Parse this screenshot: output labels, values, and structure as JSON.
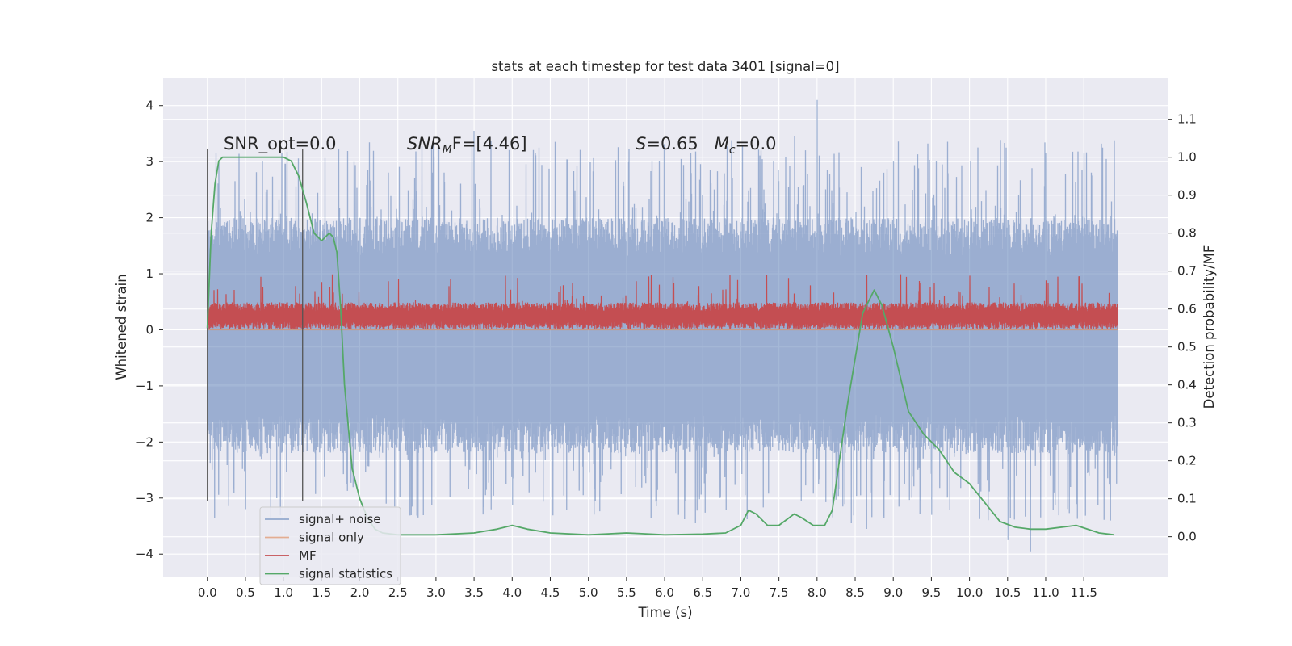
{
  "chart_data": {
    "type": "line",
    "title": "stats at each timestep for test data 3401 [signal=0]",
    "xlabel": "Time (s)",
    "ylabel": "Whitened strain",
    "y2label": "Detection probability/MF",
    "xlim": [
      -0.58,
      12.6
    ],
    "ylim": [
      -4.4,
      4.5
    ],
    "y2lim": [
      -0.105,
      1.21
    ],
    "x_ticks": [
      "0.0",
      "0.5",
      "1.0",
      "1.5",
      "2.0",
      "2.5",
      "3.0",
      "3.5",
      "4.0",
      "4.5",
      "5.0",
      "5.5",
      "6.0",
      "6.5",
      "7.0",
      "7.5",
      "8.0",
      "8.5",
      "9.0",
      "9.5",
      "10.0",
      "10.5",
      "11.0",
      "11.5"
    ],
    "y_ticks": [
      "4",
      "3",
      "2",
      "1",
      "0",
      "−1",
      "−2",
      "−3",
      "−4"
    ],
    "y2_ticks": [
      "1.1",
      "1.0",
      "0.9",
      "0.8",
      "0.7",
      "0.6",
      "0.5",
      "0.4",
      "0.3",
      "0.2",
      "0.1",
      "0.0"
    ],
    "grid": true,
    "legend_position": "lower-left",
    "annotations": {
      "snr_opt": "SNR_opt=0.0",
      "snr_mf_main": "SNR",
      "snr_mf_sub": "M",
      "snr_mf_tail": "F=[4.46]",
      "s_var": "S",
      "s_value": "=0.65",
      "mc_var": "M",
      "mc_sub": "c",
      "mc_value": "=0.0"
    },
    "vertical_markers": [
      0.0,
      1.25
    ],
    "colors": {
      "background": "#eaeaf2",
      "grid": "#ffffff",
      "noise": "#4c72b0",
      "signal_only": "#dd8452",
      "mf": "#c44e52",
      "statistics": "#55a868",
      "marker": "#555555"
    },
    "series": [
      {
        "name": "signal+ noise",
        "axis": "left",
        "envelope": {
          "x_range": [
            0.0,
            11.95
          ],
          "upper_typical": 1.6,
          "lower_typical": -1.8,
          "upper_peak_range": [
            2.0,
            3.4
          ],
          "lower_peak_range": [
            -2.0,
            -3.4
          ]
        },
        "peaks": [
          {
            "x": 8.0,
            "y": 4.1
          },
          {
            "x": 11.9,
            "y": 3.38
          },
          {
            "x": 3.5,
            "y": 3.55
          },
          {
            "x": 7.7,
            "y": 3.45
          },
          {
            "x": 10.8,
            "y": -3.95
          },
          {
            "x": 10.5,
            "y": -3.75
          },
          {
            "x": 8.45,
            "y": -3.45
          },
          {
            "x": 6.4,
            "y": -3.45
          },
          {
            "x": 8.65,
            "y": -3.55
          },
          {
            "x": 11.85,
            "y": -3.4
          }
        ]
      },
      {
        "name": "signal only",
        "axis": "left",
        "x": [
          0.0,
          11.95
        ],
        "y": [
          0.0,
          0.0
        ]
      },
      {
        "name": "MF",
        "axis": "left",
        "band": {
          "x_range": [
            0.0,
            11.95
          ],
          "center": 0.25,
          "half_width": 0.2,
          "peak_max": 1.0
        }
      },
      {
        "name": "signal statistics",
        "axis": "right",
        "x": [
          0.0,
          0.05,
          0.1,
          0.15,
          0.2,
          0.3,
          0.5,
          0.8,
          1.0,
          1.1,
          1.2,
          1.3,
          1.4,
          1.5,
          1.55,
          1.6,
          1.65,
          1.7,
          1.75,
          1.8,
          1.9,
          2.0,
          2.1,
          2.2,
          2.3,
          2.5,
          2.7,
          3.0,
          3.5,
          3.8,
          4.0,
          4.2,
          4.5,
          5.0,
          5.5,
          5.7,
          6.0,
          6.5,
          6.8,
          7.0,
          7.1,
          7.2,
          7.35,
          7.5,
          7.7,
          7.8,
          7.95,
          8.1,
          8.2,
          8.4,
          8.6,
          8.75,
          8.85,
          9.0,
          9.2,
          9.4,
          9.6,
          9.8,
          10.0,
          10.2,
          10.4,
          10.6,
          10.8,
          11.0,
          11.4,
          11.7,
          11.9
        ],
        "y": [
          0.55,
          0.8,
          0.93,
          0.99,
          1.0,
          1.0,
          1.0,
          1.0,
          1.0,
          0.99,
          0.95,
          0.88,
          0.8,
          0.78,
          0.79,
          0.8,
          0.79,
          0.75,
          0.6,
          0.4,
          0.18,
          0.1,
          0.05,
          0.02,
          0.01,
          0.005,
          0.005,
          0.005,
          0.01,
          0.02,
          0.03,
          0.02,
          0.01,
          0.005,
          0.01,
          0.008,
          0.005,
          0.007,
          0.01,
          0.03,
          0.07,
          0.06,
          0.03,
          0.03,
          0.06,
          0.05,
          0.03,
          0.03,
          0.07,
          0.35,
          0.59,
          0.65,
          0.61,
          0.5,
          0.33,
          0.27,
          0.23,
          0.17,
          0.14,
          0.09,
          0.04,
          0.025,
          0.02,
          0.02,
          0.03,
          0.01,
          0.005
        ]
      }
    ]
  }
}
